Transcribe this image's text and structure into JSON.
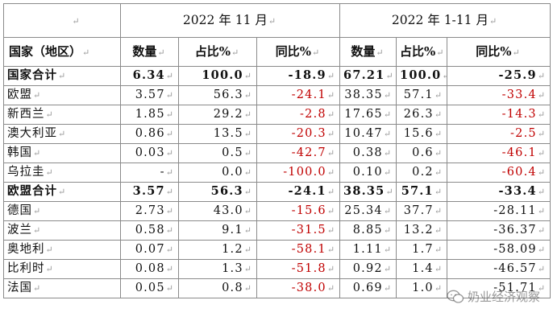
{
  "return_mark": "↵",
  "header": {
    "period_month": "2022 年 11 月",
    "period_ytd": "2022 年 1-11 月",
    "col_country": "国家（地区）",
    "col_qty": "数量",
    "col_share": "占比%",
    "col_yoy": "同比%"
  },
  "rows": [
    {
      "name": "国家合计",
      "m_qty": "6.34",
      "m_share": "100.0",
      "m_yoy": "-18.9",
      "y_qty": "67.21",
      "y_share": "100.0",
      "y_yoy": "-25.9"
    },
    {
      "name": "欧盟",
      "m_qty": "3.57",
      "m_share": "56.3",
      "m_yoy": "-24.1",
      "y_qty": "38.35",
      "y_share": "57.1",
      "y_yoy": "-33.4"
    },
    {
      "name": "新西兰",
      "m_qty": "1.85",
      "m_share": "29.2",
      "m_yoy": "-2.8",
      "y_qty": "17.65",
      "y_share": "26.3",
      "y_yoy": "-14.3"
    },
    {
      "name": "澳大利亚",
      "m_qty": "0.86",
      "m_share": "13.5",
      "m_yoy": "-20.3",
      "y_qty": "10.47",
      "y_share": "15.6",
      "y_yoy": "-2.5"
    },
    {
      "name": "韩国",
      "m_qty": "0.03",
      "m_share": "0.5",
      "m_yoy": "-42.7",
      "y_qty": "0.38",
      "y_share": "0.6",
      "y_yoy": "-46.1"
    },
    {
      "name": "乌拉圭",
      "m_qty": "-",
      "m_share": "0.0",
      "m_yoy": "-100.0",
      "y_qty": "0.10",
      "y_share": "0.2",
      "y_yoy": "-60.4"
    },
    {
      "name": "欧盟合计",
      "m_qty": "3.57",
      "m_share": "56.3",
      "m_yoy": "-24.1",
      "y_qty": "38.35",
      "y_share": "57.1",
      "y_yoy": "-33.4"
    },
    {
      "name": "德国",
      "m_qty": "2.73",
      "m_share": "43.0",
      "m_yoy": "-15.6",
      "y_qty": "25.34",
      "y_share": "37.7",
      "y_yoy": "-28.11"
    },
    {
      "name": "波兰",
      "m_qty": "0.58",
      "m_share": "9.1",
      "m_yoy": "-31.5",
      "y_qty": "8.85",
      "y_share": "13.2",
      "y_yoy": "-36.37"
    },
    {
      "name": "奥地利",
      "m_qty": "0.07",
      "m_share": "1.2",
      "m_yoy": "-58.1",
      "y_qty": "1.11",
      "y_share": "1.7",
      "y_yoy": "-58.09"
    },
    {
      "name": "比利时",
      "m_qty": "0.08",
      "m_share": "1.3",
      "m_yoy": "-51.8",
      "y_qty": "0.92",
      "y_share": "1.4",
      "y_yoy": "-46.57"
    },
    {
      "name": "法国",
      "m_qty": "0.05",
      "m_share": "0.8",
      "m_yoy": "-38.0",
      "y_qty": "0.69",
      "y_share": "1.0",
      "y_yoy": "-51.71"
    }
  ],
  "watermark": {
    "text": "奶业经济观察",
    "icon": "wechat-icon"
  },
  "colors": {
    "negative": "#c00000",
    "border": "#8a8a8a",
    "text": "#111111"
  }
}
